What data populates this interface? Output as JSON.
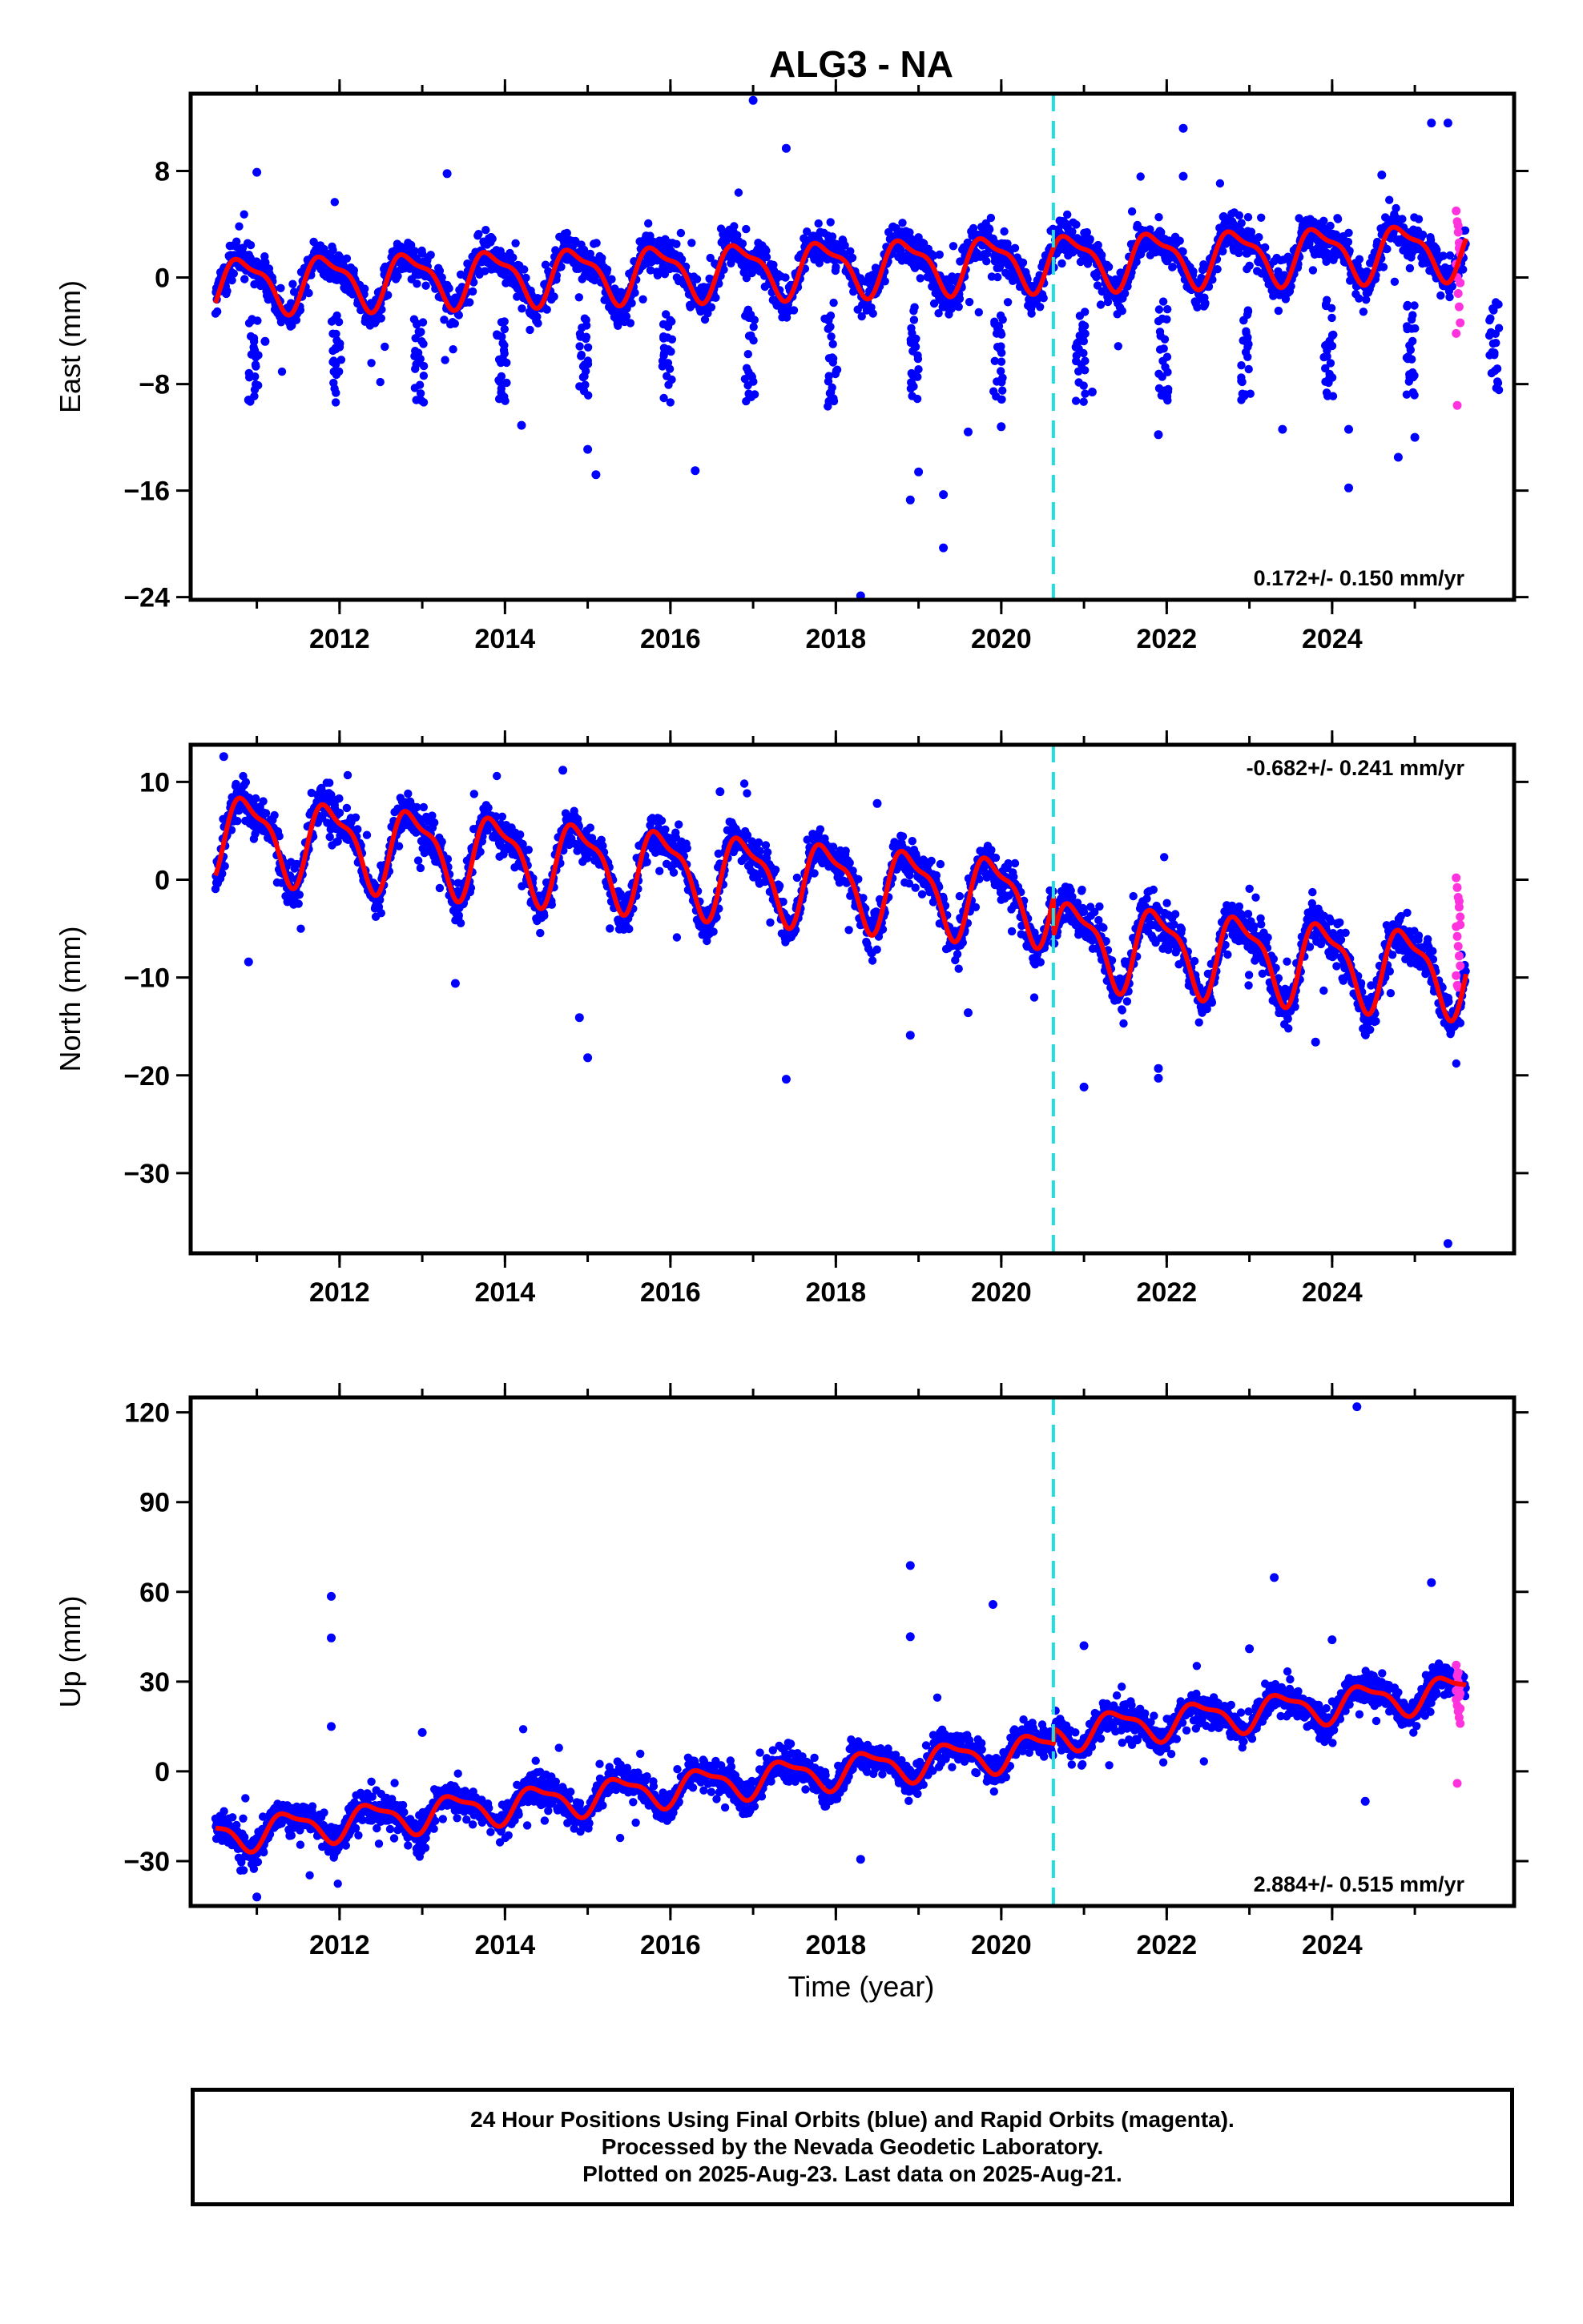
{
  "title": "ALG3 - NA",
  "xlabel": "Time (year)",
  "footer": {
    "line1": "24 Hour Positions Using Final Orbits (blue) and Rapid Orbits (magenta).",
    "line2": "Processed by the Nevada Geodetic Laboratory.",
    "line3": "Plotted on 2025-Aug-23. Last data on 2025-Aug-21."
  },
  "colors": {
    "final": "#0000ff",
    "rapid": "#ff33dd",
    "model": "#ff0000",
    "offset": "#22dde0"
  },
  "chart_data": [
    {
      "type": "scatter",
      "ylabel": "East (mm)",
      "rate": "0.172+/- 0.150 mm/yr",
      "rate_position": "bottom-right",
      "xlim": [
        2010.2,
        2026.2
      ],
      "ylim": [
        -24.2,
        13.8
      ],
      "xticks": [
        2012,
        2014,
        2016,
        2018,
        2020,
        2022,
        2024
      ],
      "xtick_labels": [
        "2012",
        "2014",
        "2016",
        "2018",
        "2020",
        "2022",
        "2024"
      ],
      "yticks": [
        8,
        0,
        -8,
        -16,
        -24
      ],
      "ytick_labels": [
        "8",
        "0",
        "−8",
        "−16",
        "−24"
      ],
      "offset_year": 2020.63,
      "start": 2010.5,
      "end": 2025.62,
      "trend": 0.172,
      "base": -0.5,
      "amplitude": 1.9,
      "noise": 1.4,
      "seasonal_phase": 0.6,
      "annual_minima": [
        -2.6,
        -2.8,
        -2.4,
        -2.6,
        -2.2,
        -2.5,
        -2.4,
        -2.8,
        -2.2,
        -2.6,
        -2.4,
        -2.3,
        -2.2,
        -2.0,
        -2.0,
        -1.8
      ],
      "steps": [
        {
          "year": 2020.63,
          "value": 0.0
        }
      ],
      "rapid_values": [
        5.0,
        4.2,
        3.4,
        2.6,
        1.8,
        1.0,
        0.0,
        -1.2,
        -2.2,
        -3.4,
        -4.2,
        -9.6,
        3.9,
        2.2,
        -0.4
      ],
      "outliers": [
        [
          2017.0,
          13.3
        ],
        [
          2017.4,
          9.7
        ],
        [
          2010.9,
          -9.2
        ],
        [
          2011.1,
          -4.8
        ],
        [
          2014.2,
          -11.1
        ],
        [
          2015.1,
          -14.8
        ],
        [
          2015.0,
          -12.9
        ],
        [
          2016.3,
          -14.5
        ],
        [
          2018.3,
          -23.9
        ],
        [
          2018.9,
          -16.7
        ],
        [
          2019.0,
          -14.6
        ],
        [
          2019.3,
          -16.3
        ],
        [
          2019.3,
          -20.3
        ],
        [
          2019.6,
          -11.6
        ],
        [
          2020.0,
          -11.2
        ],
        [
          2021.1,
          -8.6
        ],
        [
          2022.2,
          11.2
        ],
        [
          2022.2,
          7.6
        ],
        [
          2023.4,
          -11.4
        ],
        [
          2024.2,
          -11.4
        ],
        [
          2024.2,
          -15.8
        ],
        [
          2024.8,
          -13.5
        ],
        [
          2025.2,
          11.6
        ],
        [
          2025.4,
          11.6
        ],
        [
          2025.0,
          -12.0
        ],
        [
          2011.0,
          7.9
        ],
        [
          2013.3,
          7.8
        ],
        [
          2024.6,
          7.7
        ],
        [
          2021.9,
          -11.8
        ],
        [
          2022.0,
          -9.0
        ]
      ]
    },
    {
      "type": "scatter",
      "ylabel": "North (mm)",
      "rate": "-0.682+/- 0.241 mm/yr",
      "rate_position": "top-right",
      "xlim": [
        2010.2,
        2026.2
      ],
      "ylim": [
        -38.2,
        13.8
      ],
      "xticks": [
        2012,
        2014,
        2016,
        2018,
        2020,
        2022,
        2024
      ],
      "xtick_labels": [
        "2012",
        "2014",
        "2016",
        "2018",
        "2020",
        "2022",
        "2024"
      ],
      "yticks": [
        10,
        0,
        -10,
        -20,
        -30
      ],
      "ytick_labels": [
        "10",
        "0",
        "−10",
        "−20",
        "−30"
      ],
      "offset_year": 2020.63,
      "start": 2010.5,
      "end": 2025.62,
      "trend": -0.68,
      "base": 4.8,
      "amplitude": 3.9,
      "noise": 2.0,
      "seasonal_phase": 0.65,
      "annual_minima": [],
      "steps": [
        {
          "year": 2020.63,
          "value": -4.0
        }
      ],
      "rapid_values": [
        0.2,
        -0.8,
        -1.8,
        -2.8,
        -3.8,
        -4.8,
        -5.8,
        -6.8,
        -7.8,
        -8.8,
        -9.8,
        -10.8,
        -11.0,
        -2.2,
        -4.6
      ],
      "outliers": [
        [
          2010.6,
          12.6
        ],
        [
          2010.9,
          -8.4
        ],
        [
          2013.4,
          -10.6
        ],
        [
          2014.9,
          -14.1
        ],
        [
          2015.0,
          -18.2
        ],
        [
          2017.4,
          -20.4
        ],
        [
          2018.9,
          -15.9
        ],
        [
          2019.6,
          -13.6
        ],
        [
          2021.0,
          -21.2
        ],
        [
          2021.9,
          -19.3
        ],
        [
          2021.9,
          -20.3
        ],
        [
          2023.8,
          -16.6
        ],
        [
          2024.4,
          -15.8
        ],
        [
          2025.4,
          -37.2
        ],
        [
          2014.7,
          11.2
        ],
        [
          2016.6,
          9.0
        ],
        [
          2018.5,
          7.8
        ]
      ]
    },
    {
      "type": "scatter",
      "ylabel": "Up (mm)",
      "rate": "2.884+/- 0.515 mm/yr",
      "rate_position": "bottom-right",
      "xlim": [
        2010.2,
        2026.2
      ],
      "ylim": [
        -45,
        125
      ],
      "xticks": [
        2012,
        2014,
        2016,
        2018,
        2020,
        2022,
        2024
      ],
      "xtick_labels": [
        "2012",
        "2014",
        "2016",
        "2018",
        "2020",
        "2022",
        "2024"
      ],
      "yticks": [
        120,
        90,
        60,
        30,
        0,
        -30
      ],
      "ytick_labels": [
        "120",
        "90",
        "60",
        "30",
        "0",
        "−30"
      ],
      "offset_year": 2020.63,
      "start": 2010.5,
      "end": 2025.62,
      "trend": 2.884,
      "base": -21.5,
      "amplitude": 5.2,
      "noise": 5.0,
      "seasonal_phase": 0.15,
      "annual_minima": [],
      "steps": [
        {
          "year": 2020.63,
          "value": 5.0
        }
      ],
      "rapid_values": [
        35.5,
        32.0,
        30.0,
        28.0,
        26.0,
        24.0,
        22.0,
        20.0,
        18.0,
        16.0,
        27.0,
        -4.0,
        33.0,
        25.0,
        21.0
      ],
      "outliers": [
        [
          2011.9,
          58.5
        ],
        [
          2011.9,
          44.6
        ],
        [
          2011.9,
          15.0
        ],
        [
          2011.0,
          -42.0
        ],
        [
          2013.0,
          13.0
        ],
        [
          2018.3,
          -29.4
        ],
        [
          2018.9,
          68.8
        ],
        [
          2018.9,
          45.0
        ],
        [
          2019.9,
          55.8
        ],
        [
          2023.3,
          64.8
        ],
        [
          2024.3,
          121.9
        ],
        [
          2024.0,
          44.0
        ],
        [
          2025.2,
          63.1
        ],
        [
          2023.0,
          41.0
        ],
        [
          2021.0,
          42.0
        ],
        [
          2024.4,
          -10.0
        ]
      ]
    }
  ]
}
